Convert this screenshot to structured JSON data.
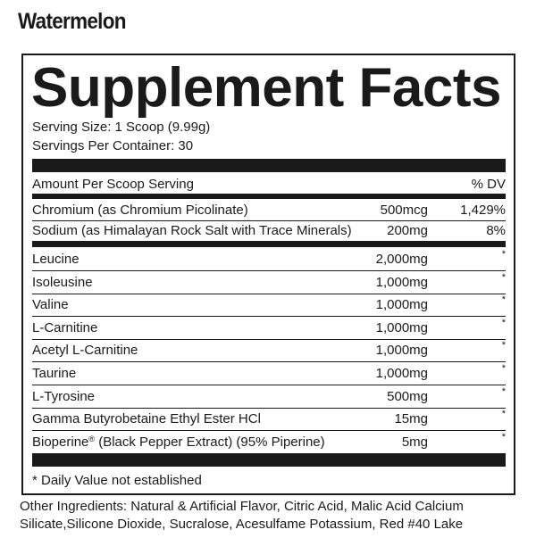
{
  "flavor": "Watermelon",
  "panel": {
    "title": "Supplement Facts",
    "serving_size": "Serving Size: 1 Scoop (9.99g)",
    "servings_per_container": "Servings Per Container: 30",
    "header_amount": "Amount Per Scoop Serving",
    "header_dv": "% DV",
    "minerals": [
      {
        "name": "Chromium (as Chromium Picolinate)",
        "amount": "500mcg",
        "dv": "1,429%"
      },
      {
        "name": "Sodium (as Himalayan Rock Salt with Trace Minerals)",
        "amount": "200mg",
        "dv": "8%"
      }
    ],
    "ingredients": [
      {
        "name": "Leucine",
        "amount": "2,000mg",
        "dv": "*"
      },
      {
        "name": "Isoleusine",
        "amount": "1,000mg",
        "dv": "*"
      },
      {
        "name": "Valine",
        "amount": "1,000mg",
        "dv": "*"
      },
      {
        "name": "L-Carnitine",
        "amount": "1,000mg",
        "dv": "*"
      },
      {
        "name": "Acetyl L-Carnitine",
        "amount": "1,000mg",
        "dv": "*"
      },
      {
        "name": "Taurine",
        "amount": "1,000mg",
        "dv": "*"
      },
      {
        "name": "L-Tyrosine",
        "amount": "500mg",
        "dv": "*"
      },
      {
        "name": "Gamma Butyrobetaine Ethyl Ester HCl",
        "amount": "15mg",
        "dv": "*"
      },
      {
        "name": "Bioperine",
        "name_mark": "®",
        "name_rest": " (Black Pepper Extract) (95% Piperine)",
        "amount": "5mg",
        "dv": "*"
      }
    ],
    "footnote": "* Daily Value not established"
  },
  "other_ingredients": "Other Ingredients: Natural & Artificial Flavor, Citric Acid, Malic Acid Calcium Silicate,Silicone Dioxide, Sucralose, Acesulfame Potassium, Red #40 Lake"
}
